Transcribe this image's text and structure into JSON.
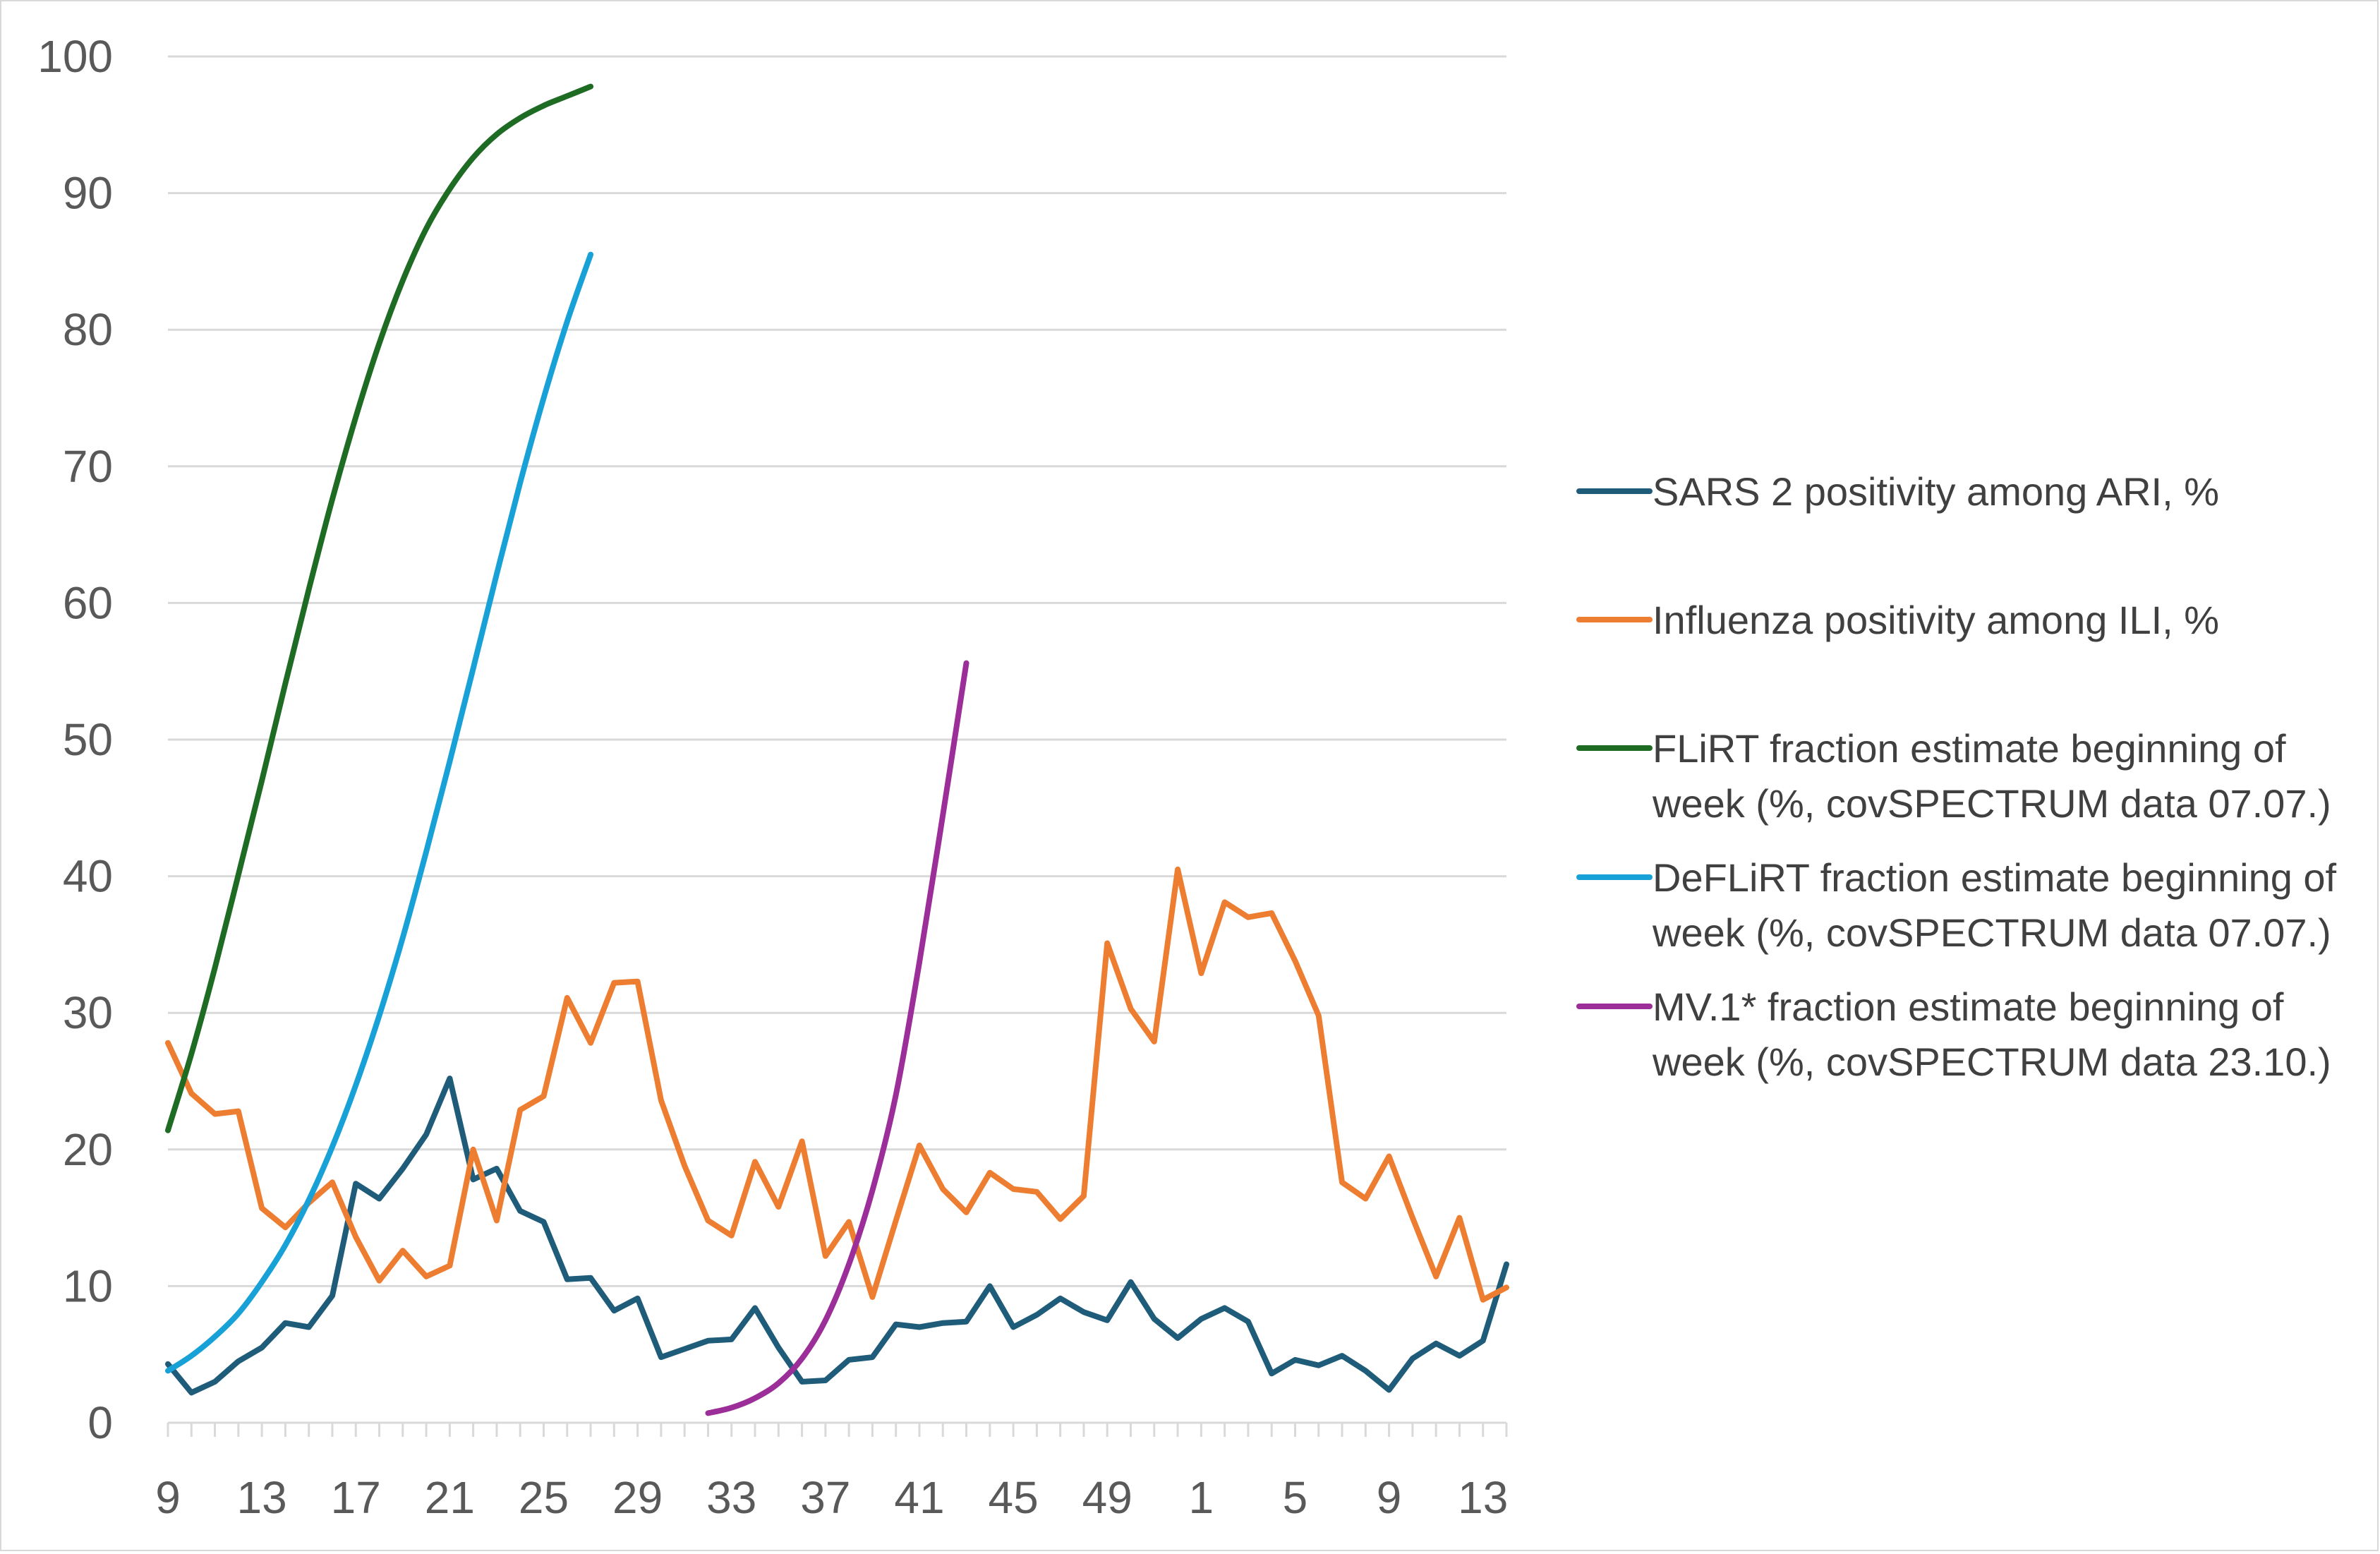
{
  "chart_data": {
    "type": "line",
    "title": "",
    "xlabel": "",
    "ylabel": "",
    "ylim": [
      0,
      100
    ],
    "yticks": [
      0,
      10,
      20,
      30,
      40,
      50,
      60,
      70,
      80,
      90,
      100
    ],
    "grid": "horizontal",
    "legend_position": "right",
    "x_tick_labels": [
      "9",
      "13",
      "17",
      "21",
      "25",
      "29",
      "33",
      "37",
      "41",
      "45",
      "49",
      "1",
      "5",
      "9",
      "13"
    ],
    "x_week_numbers": [
      9,
      10,
      11,
      12,
      13,
      14,
      15,
      16,
      17,
      18,
      19,
      20,
      21,
      22,
      23,
      24,
      25,
      26,
      27,
      28,
      29,
      30,
      31,
      32,
      33,
      34,
      35,
      36,
      37,
      38,
      39,
      40,
      41,
      42,
      43,
      44,
      45,
      46,
      47,
      48,
      49,
      50,
      51,
      52,
      1,
      2,
      3,
      4,
      5,
      6,
      7,
      8,
      9,
      10,
      11,
      12,
      13,
      14
    ],
    "series": [
      {
        "name": "SARS 2 positivity among ARI, %",
        "color": "#1f5c7a",
        "start_index": 0,
        "values": [
          4.3,
          2.2,
          3.0,
          4.5,
          5.5,
          7.3,
          7.0,
          9.3,
          17.5,
          16.4,
          18.6,
          21.1,
          25.2,
          17.8,
          18.6,
          15.5,
          14.7,
          10.5,
          10.6,
          8.2,
          9.1,
          4.8,
          5.4,
          6.0,
          6.1,
          8.4,
          5.5,
          3.0,
          3.1,
          4.6,
          4.8,
          7.2,
          7.0,
          7.3,
          7.4,
          10.0,
          7.0,
          7.9,
          9.1,
          8.1,
          7.5,
          10.3,
          7.6,
          6.2,
          7.6,
          8.4,
          7.4,
          3.6,
          4.6,
          4.2,
          4.9,
          3.8,
          2.4,
          4.7,
          5.8,
          4.9,
          6.0,
          11.6
        ]
      },
      {
        "name": "Influenza positivity among ILI, %",
        "color": "#ed7d31",
        "start_index": 0,
        "values": [
          27.8,
          24.1,
          22.6,
          22.8,
          15.7,
          14.3,
          16.1,
          17.6,
          13.6,
          10.4,
          12.6,
          10.7,
          11.5,
          20.0,
          14.8,
          22.9,
          23.9,
          31.1,
          27.8,
          32.2,
          32.3,
          23.6,
          18.8,
          14.8,
          13.7,
          19.1,
          15.8,
          20.6,
          12.2,
          14.7,
          9.2,
          14.8,
          20.3,
          17.1,
          15.4,
          18.3,
          17.1,
          16.9,
          14.9,
          16.6,
          35.1,
          30.3,
          27.9,
          40.5,
          32.9,
          38.1,
          37.0,
          37.3,
          33.8,
          29.8,
          17.6,
          16.4,
          19.5,
          15.0,
          10.7,
          15.0,
          9.0,
          9.9
        ]
      },
      {
        "name": "FLiRT fraction estimate beginning of week (%, covSPECTRUM data 07.07.)",
        "color": "#1e6b24",
        "start_index": 0,
        "values": [
          21.4,
          27.0,
          33.3,
          40.1,
          47.0,
          54.1,
          61.0,
          67.6,
          73.6,
          79.0,
          83.6,
          87.4,
          90.3,
          92.6,
          94.3,
          95.5,
          96.4,
          97.1,
          97.8
        ]
      },
      {
        "name": "DeFLiRT fraction estimate beginning of week (%, covSPECTRUM data 07.07.)",
        "color": "#18a1d6",
        "start_index": 0,
        "values": [
          3.8,
          4.9,
          6.3,
          8.0,
          10.3,
          13.0,
          16.3,
          20.2,
          24.7,
          29.8,
          35.5,
          41.8,
          48.4,
          55.2,
          62.1,
          68.8,
          75.0,
          80.6,
          85.5
        ]
      },
      {
        "name": "MV.1* fraction estimate beginning of week (%, covSPECTRUM data 23.10.)",
        "color": "#9b2e98",
        "start_index": 23,
        "values": [
          0.7,
          1.1,
          1.8,
          2.9,
          4.7,
          7.5,
          11.6,
          17.0,
          24.0,
          33.7,
          44.5,
          55.6
        ]
      }
    ]
  }
}
